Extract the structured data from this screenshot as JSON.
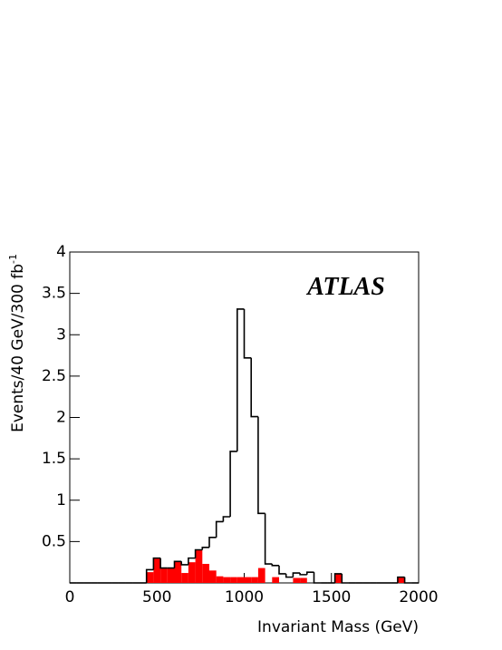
{
  "chart_data": {
    "type": "histogram",
    "xlabel": "Invariant Mass (GeV)",
    "ylabel": "Events/40 GeV/300 fb",
    "ylabel_superscript": "-1",
    "annotation": "ATLAS",
    "bins": [
      0,
      40,
      80,
      120,
      160,
      200,
      240,
      280,
      320,
      360,
      400,
      440,
      480,
      520,
      560,
      600,
      640,
      680,
      720,
      760,
      800,
      840,
      880,
      920,
      960,
      1000,
      1040,
      1080,
      1120,
      1160,
      1200,
      1240,
      1280,
      1320,
      1360,
      1400,
      1440,
      1480,
      1520,
      1560,
      1600,
      1640,
      1680,
      1720,
      1760,
      1800,
      1840,
      1880,
      1920,
      1960,
      2000
    ],
    "series": [
      {
        "color": "#000000",
        "fill": false,
        "values": [
          0,
          0,
          0,
          0,
          0,
          0,
          0,
          0,
          0,
          0,
          0,
          0.16,
          0.3,
          0.18,
          0.18,
          0.26,
          0.22,
          0.3,
          0.4,
          0.43,
          0.55,
          0.74,
          0.8,
          1.59,
          3.31,
          2.72,
          2.01,
          0.84,
          0.23,
          0.21,
          0.11,
          0.07,
          0.12,
          0.1,
          0.13,
          0,
          0,
          0,
          0.11,
          0,
          0,
          0,
          0,
          0,
          0,
          0,
          0,
          0.07,
          0,
          0
        ]
      },
      {
        "color": "#ff0000",
        "fill": true,
        "values": [
          0,
          0,
          0,
          0,
          0,
          0,
          0,
          0,
          0,
          0,
          0,
          0.13,
          0.3,
          0.18,
          0.18,
          0.26,
          0.12,
          0.25,
          0.4,
          0.23,
          0.15,
          0.08,
          0.07,
          0.07,
          0.07,
          0.07,
          0.07,
          0.18,
          0,
          0.07,
          0,
          0,
          0.06,
          0.06,
          0,
          0,
          0,
          0,
          0.11,
          0,
          0,
          0,
          0,
          0,
          0,
          0,
          0,
          0.07,
          0,
          0
        ]
      }
    ],
    "xlim": [
      0,
      2000
    ],
    "xticks": [
      0,
      500,
      1000,
      1500,
      2000
    ],
    "ylim": [
      0,
      4
    ],
    "yticks": [
      0.5,
      1,
      1.5,
      2,
      2.5,
      3,
      3.5,
      4
    ]
  }
}
